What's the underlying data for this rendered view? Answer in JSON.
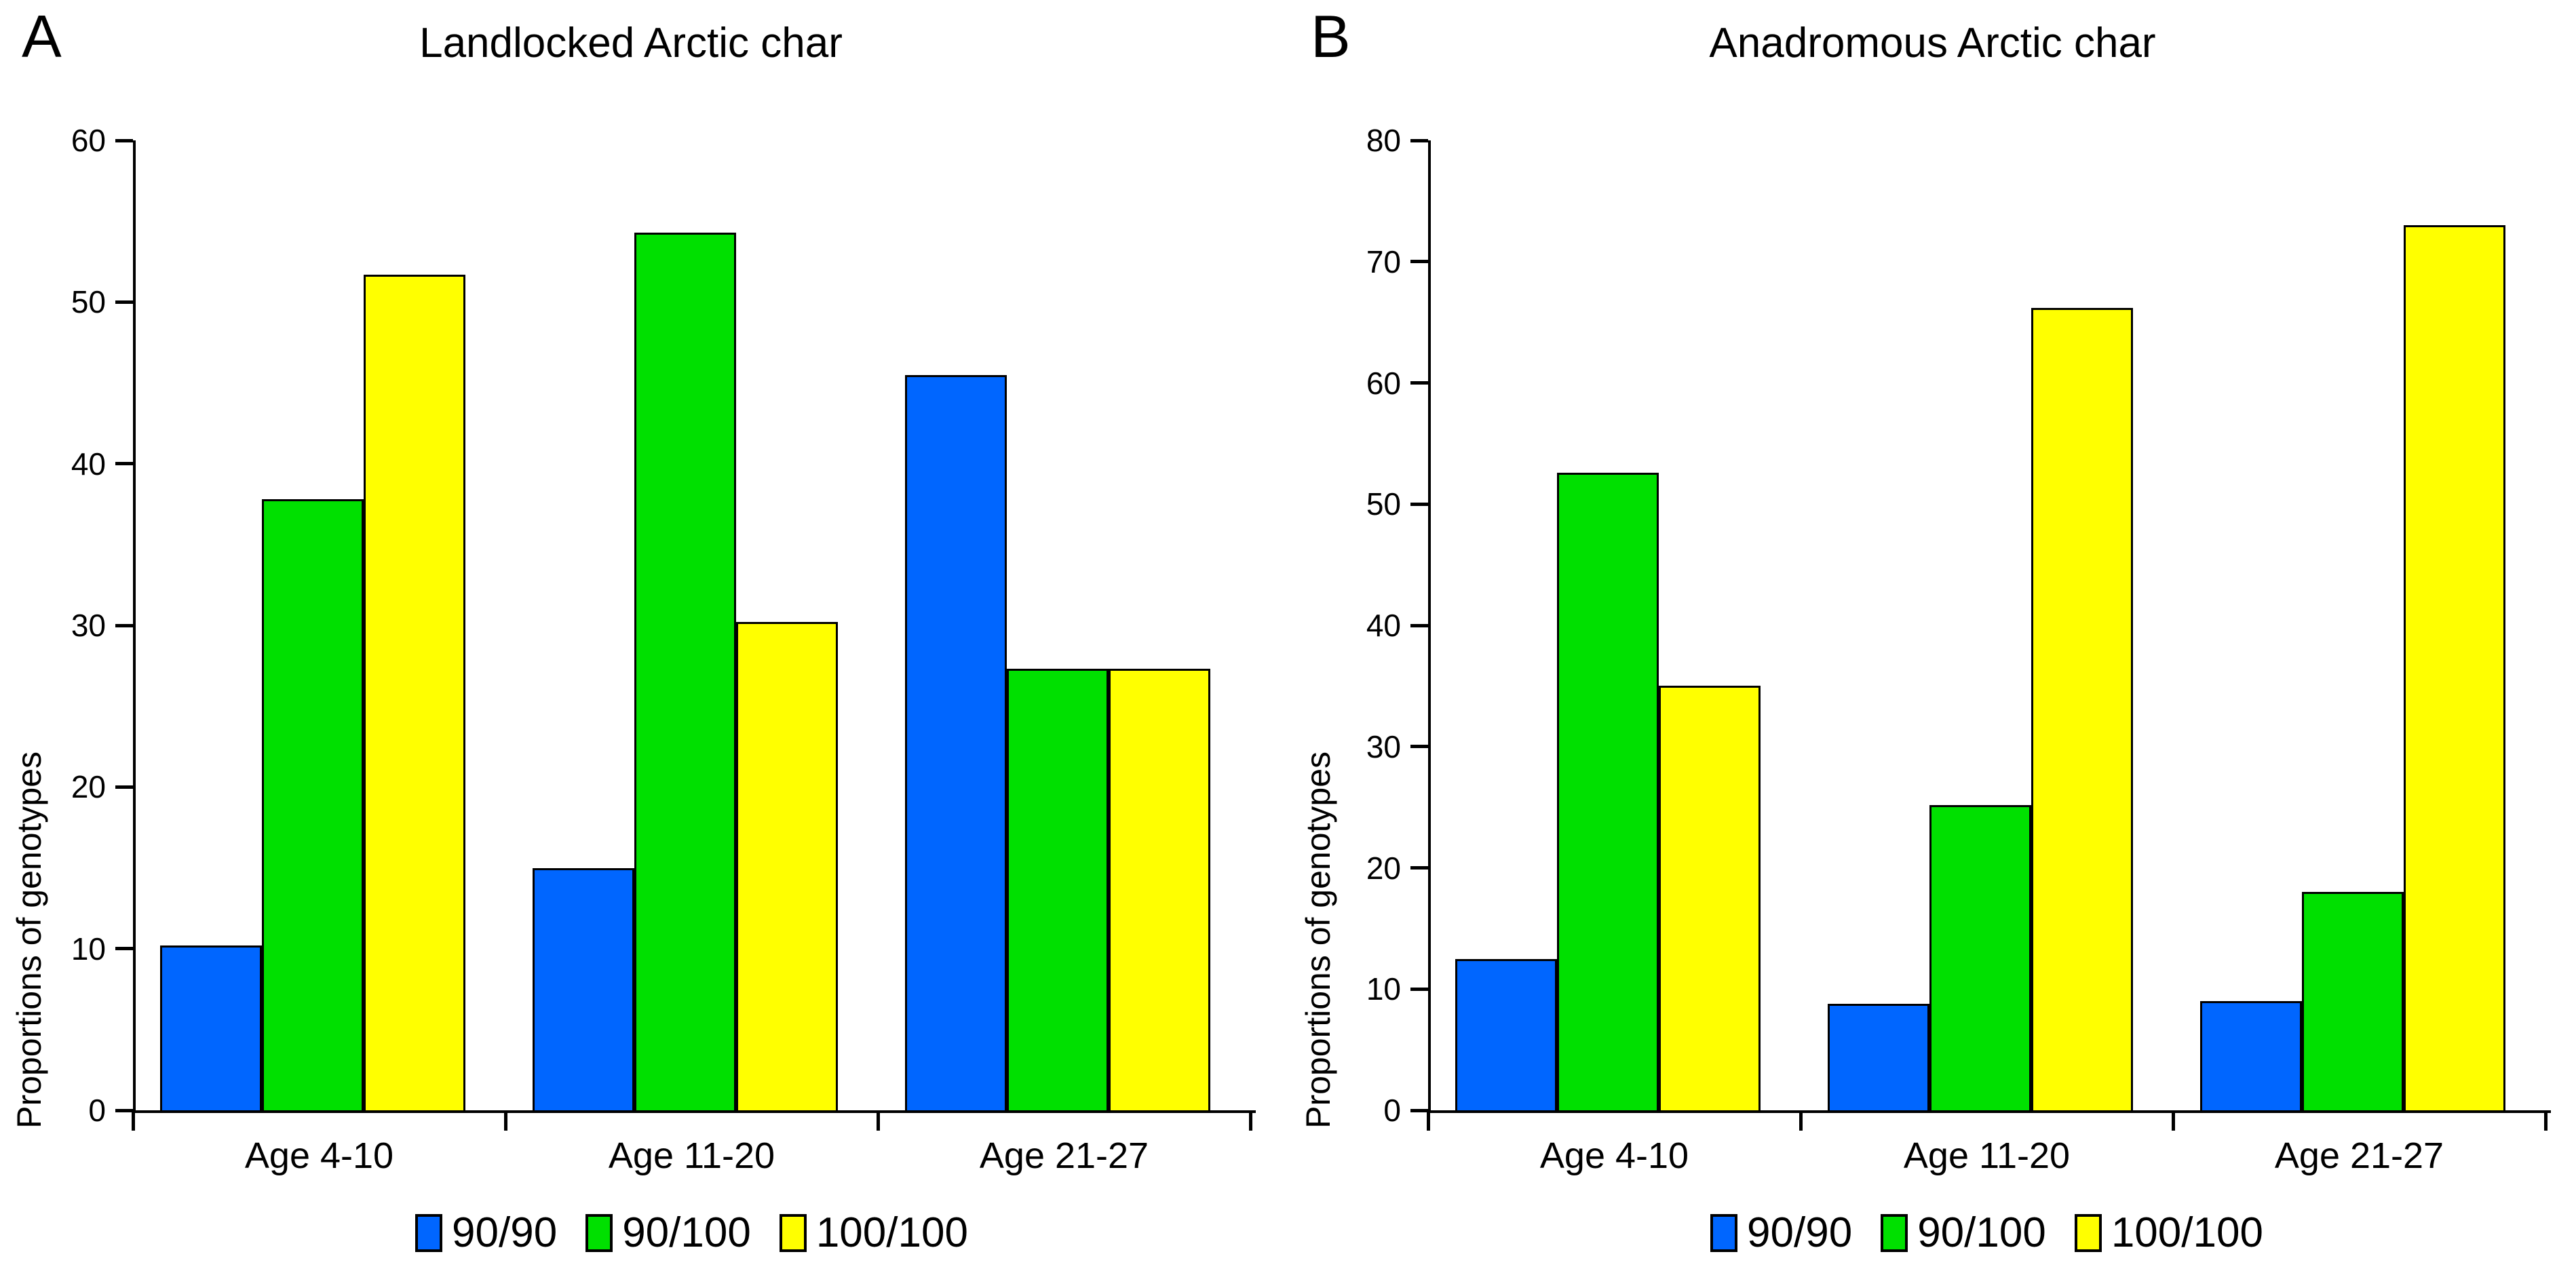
{
  "figure": {
    "panels": [
      {
        "panel_label": "A"
      },
      {
        "panel_label": "B"
      }
    ]
  },
  "chart_data": [
    {
      "type": "bar",
      "panel_label": "A",
      "title": "Landlocked Arctic char",
      "ylabel": "Proportions of genotypes",
      "xlabel": "",
      "ylim": [
        0,
        60
      ],
      "ytick_step": 10,
      "ytick_labels": [
        "0",
        "10",
        "20",
        "30",
        "40",
        "50",
        "60"
      ],
      "grid": false,
      "legend_position": "bottom",
      "categories": [
        "Age 4-10",
        "Age 11-20",
        "Age 21-27"
      ],
      "series": [
        {
          "name": "90/90",
          "color": "#0066FF",
          "values": [
            10.2,
            15.0,
            45.5
          ]
        },
        {
          "name": "90/100",
          "color": "#00E000",
          "values": [
            37.8,
            54.3,
            27.3
          ]
        },
        {
          "name": "100/100",
          "color": "#FFFF00",
          "values": [
            51.7,
            30.2,
            27.3
          ]
        }
      ]
    },
    {
      "type": "bar",
      "panel_label": "B",
      "title": "Anadromous Arctic char",
      "ylabel": "Proportions of genotypes",
      "xlabel": "",
      "ylim": [
        0,
        80
      ],
      "ytick_step": 10,
      "ytick_labels": [
        "0",
        "10",
        "20",
        "30",
        "40",
        "50",
        "60",
        "70",
        "80"
      ],
      "grid": false,
      "legend_position": "bottom",
      "categories": [
        "Age 4-10",
        "Age 11-20",
        "Age 21-27"
      ],
      "series": [
        {
          "name": "90/90",
          "color": "#0066FF",
          "values": [
            12.5,
            8.8,
            9.0
          ]
        },
        {
          "name": "90/100",
          "color": "#00E000",
          "values": [
            52.6,
            25.2,
            18.0
          ]
        },
        {
          "name": "100/100",
          "color": "#FFFF00",
          "values": [
            35.0,
            66.2,
            73.0
          ]
        }
      ]
    }
  ]
}
